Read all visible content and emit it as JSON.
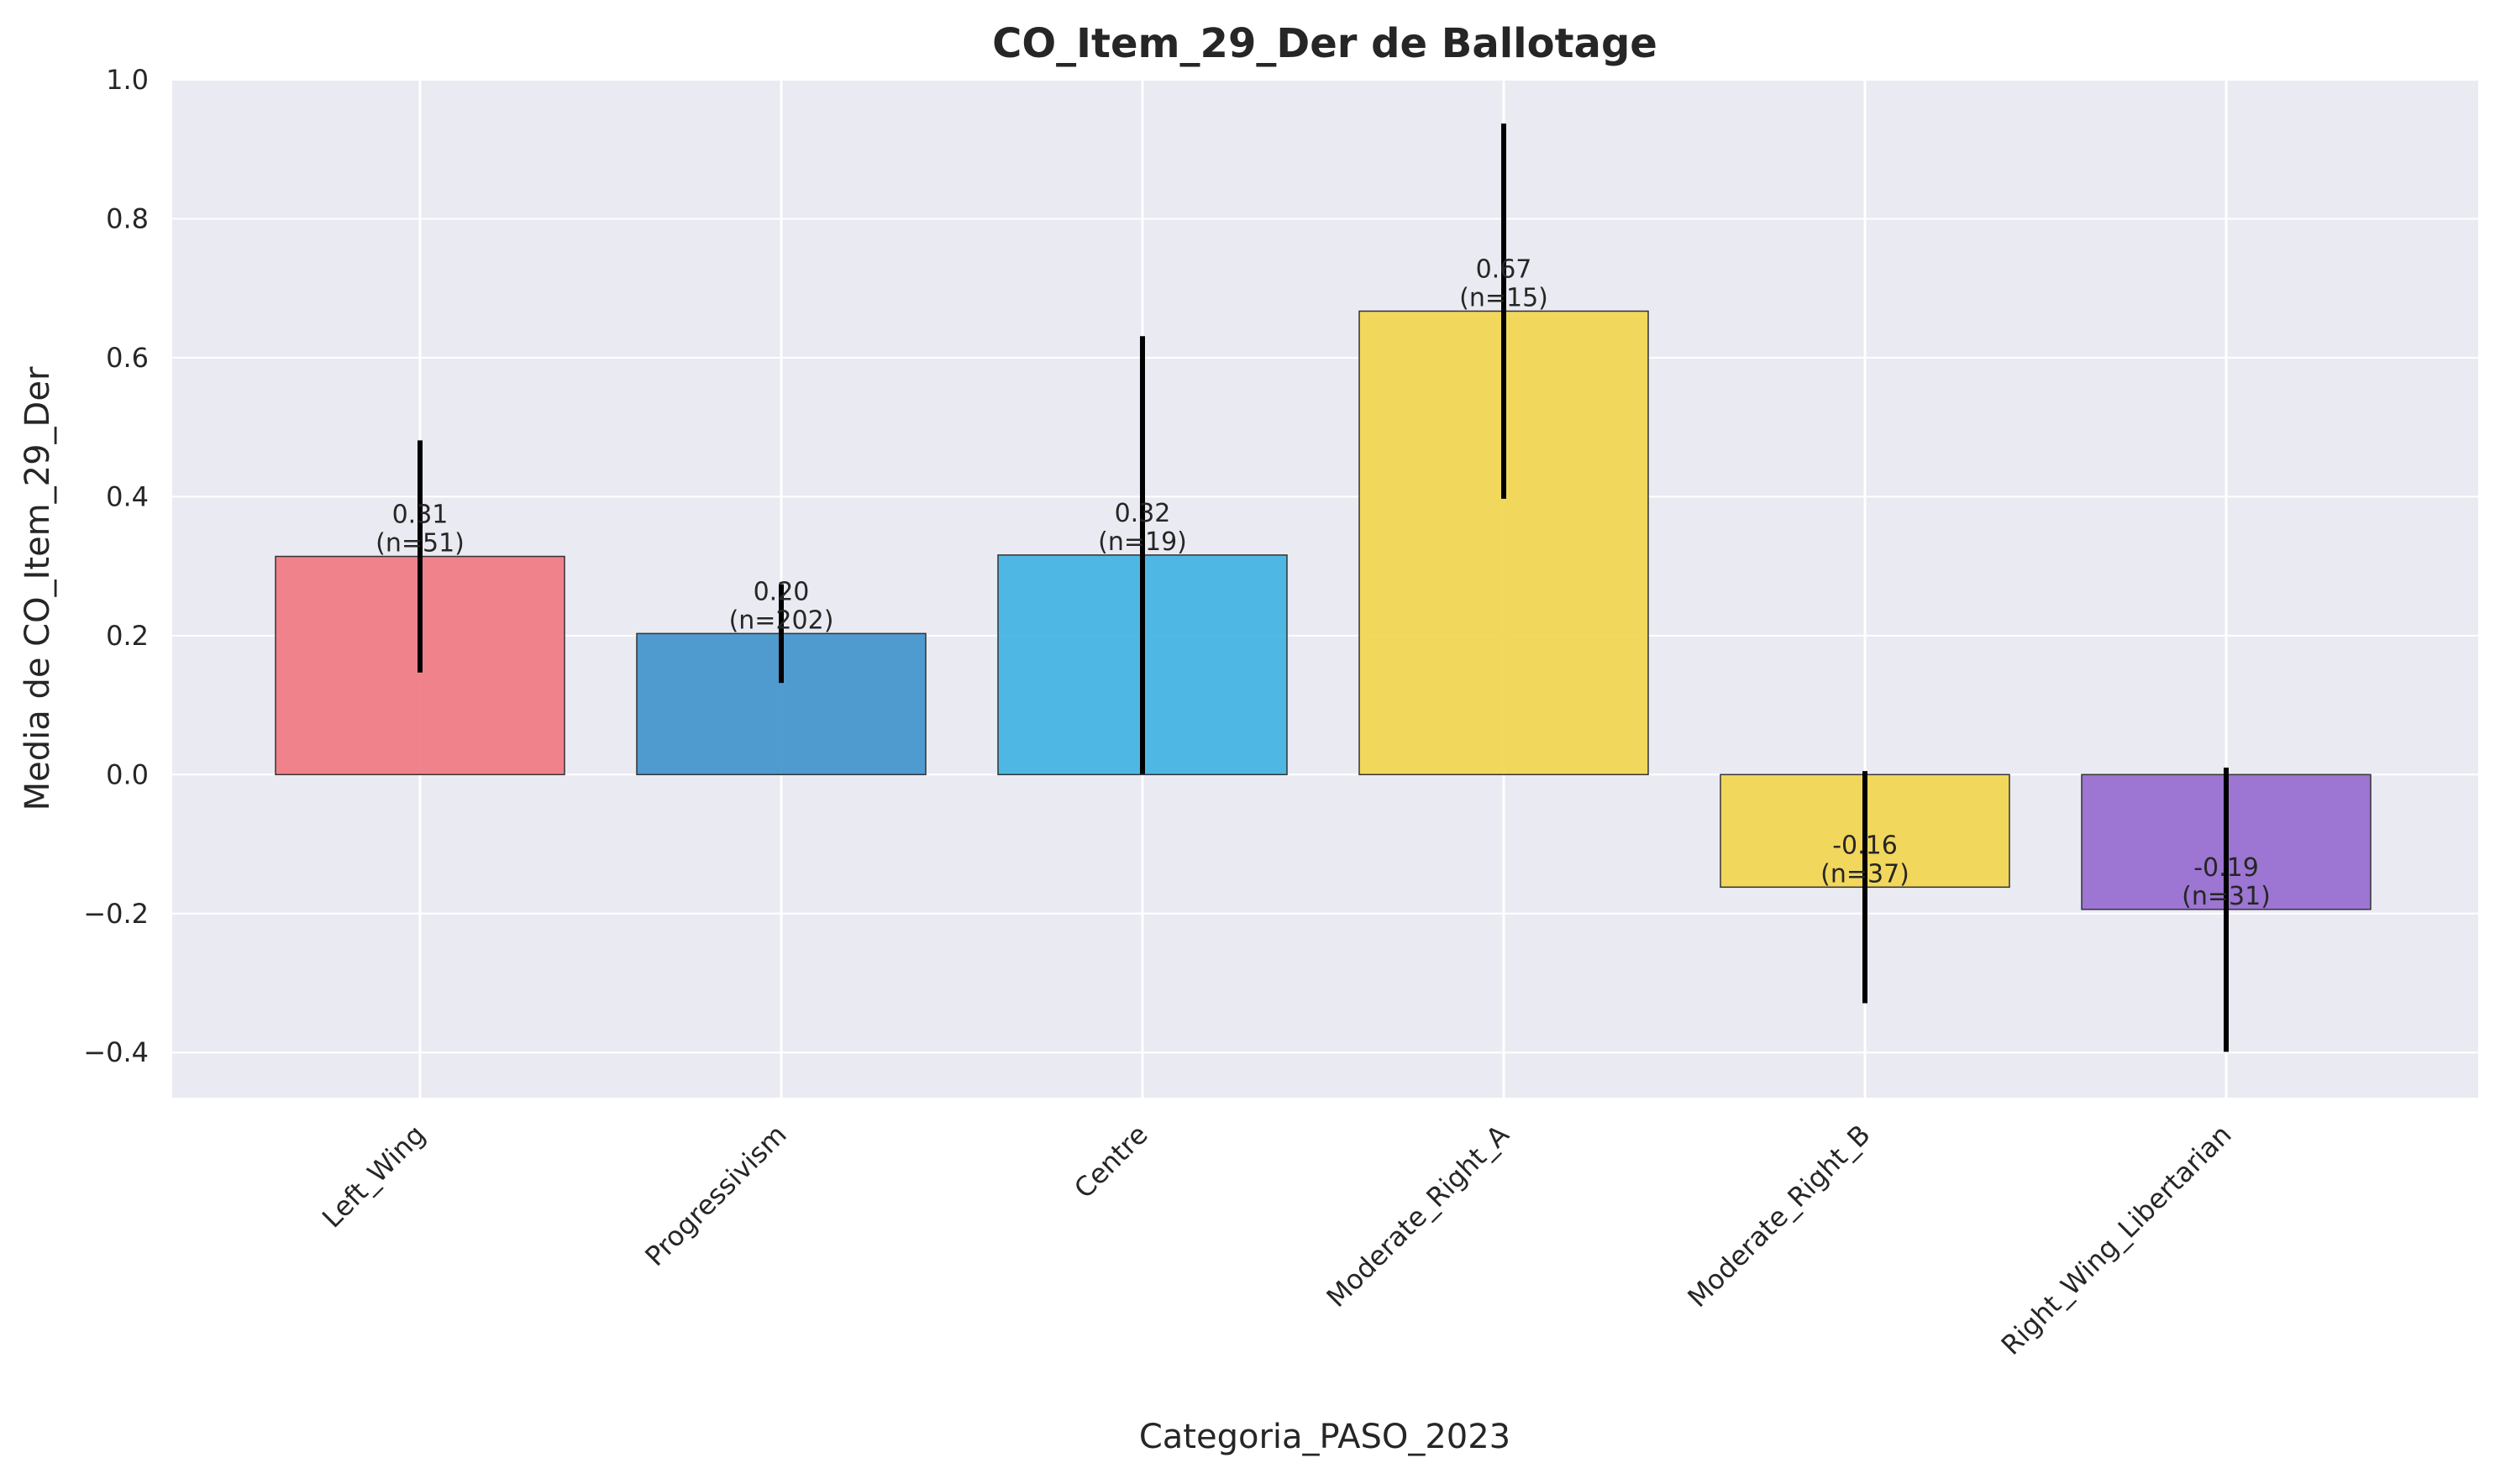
{
  "chart_data": {
    "type": "bar",
    "title": "CO_Item_29_Der de Ballotage",
    "xlabel": "Categoria_PASO_2023",
    "ylabel": "Media de CO_Item_29_Der",
    "ylim": [
      -0.465,
      1.0
    ],
    "yticks": [
      -0.4,
      -0.2,
      0.0,
      0.2,
      0.4,
      0.6,
      0.8,
      1.0
    ],
    "ytick_labels": [
      "−0.4",
      "−0.2",
      "0.0",
      "0.2",
      "0.4",
      "0.6",
      "0.8",
      "1.0"
    ],
    "grid": true,
    "categories": [
      "Left_Wing",
      "Progressivism",
      "Centre",
      "Moderate_Right_A",
      "Moderate_Right_B",
      "Right_Wing_Libertarian"
    ],
    "values": [
      0.314,
      0.203,
      0.316,
      0.667,
      -0.162,
      -0.194
    ],
    "error_low": [
      0.147,
      0.132,
      0.001,
      0.397,
      -0.329,
      -0.399
    ],
    "error_high": [
      0.481,
      0.274,
      0.631,
      0.937,
      0.005,
      0.01
    ],
    "n": [
      51,
      202,
      19,
      15,
      37,
      31
    ],
    "value_labels": [
      "0.31",
      "0.20",
      "0.32",
      "0.67",
      "-0.16",
      "-0.19"
    ],
    "count_labels": [
      "(n=51)",
      "(n=202)",
      "(n=19)",
      "(n=15)",
      "(n=37)",
      "(n=31)"
    ],
    "colors": [
      "#f07c86",
      "#4796cc",
      "#47b4e2",
      "#f2d654",
      "#f2d654",
      "#9870d0"
    ],
    "background": "#eaeaf2"
  }
}
